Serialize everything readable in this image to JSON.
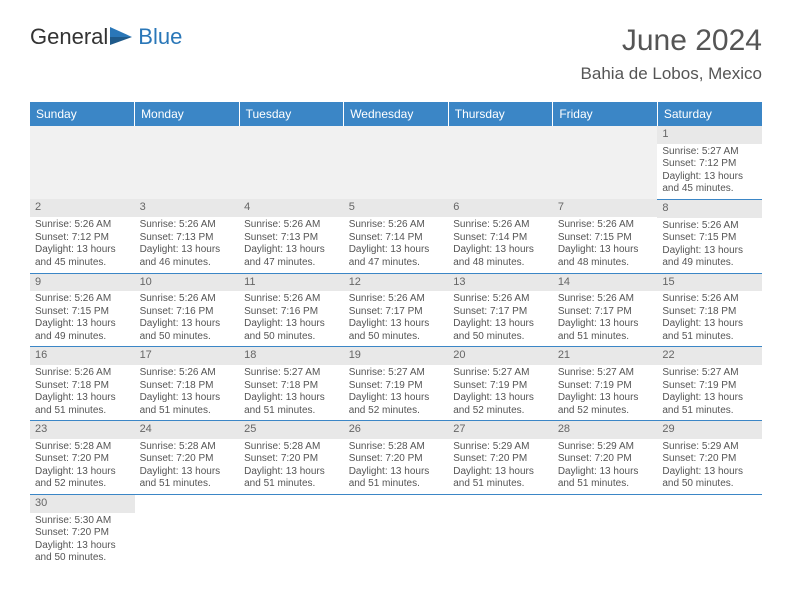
{
  "brand": {
    "part1": "General",
    "part2": "Blue"
  },
  "title": "June 2024",
  "location": "Bahia de Lobos, Mexico",
  "colors": {
    "header_bg": "#3b86c6",
    "header_text": "#ffffff",
    "daynum_bg": "#e8e8e8",
    "border": "#3b86c6",
    "text": "#555555",
    "logo_blue": "#2a77b8"
  },
  "day_headers": [
    "Sunday",
    "Monday",
    "Tuesday",
    "Wednesday",
    "Thursday",
    "Friday",
    "Saturday"
  ],
  "weeks": [
    [
      null,
      null,
      null,
      null,
      null,
      null,
      {
        "n": "1",
        "sunrise": "Sunrise: 5:27 AM",
        "sunset": "Sunset: 7:12 PM",
        "daylight": "Daylight: 13 hours and 45 minutes."
      }
    ],
    [
      {
        "n": "2",
        "sunrise": "Sunrise: 5:26 AM",
        "sunset": "Sunset: 7:12 PM",
        "daylight": "Daylight: 13 hours and 45 minutes."
      },
      {
        "n": "3",
        "sunrise": "Sunrise: 5:26 AM",
        "sunset": "Sunset: 7:13 PM",
        "daylight": "Daylight: 13 hours and 46 minutes."
      },
      {
        "n": "4",
        "sunrise": "Sunrise: 5:26 AM",
        "sunset": "Sunset: 7:13 PM",
        "daylight": "Daylight: 13 hours and 47 minutes."
      },
      {
        "n": "5",
        "sunrise": "Sunrise: 5:26 AM",
        "sunset": "Sunset: 7:14 PM",
        "daylight": "Daylight: 13 hours and 47 minutes."
      },
      {
        "n": "6",
        "sunrise": "Sunrise: 5:26 AM",
        "sunset": "Sunset: 7:14 PM",
        "daylight": "Daylight: 13 hours and 48 minutes."
      },
      {
        "n": "7",
        "sunrise": "Sunrise: 5:26 AM",
        "sunset": "Sunset: 7:15 PM",
        "daylight": "Daylight: 13 hours and 48 minutes."
      },
      {
        "n": "8",
        "sunrise": "Sunrise: 5:26 AM",
        "sunset": "Sunset: 7:15 PM",
        "daylight": "Daylight: 13 hours and 49 minutes."
      }
    ],
    [
      {
        "n": "9",
        "sunrise": "Sunrise: 5:26 AM",
        "sunset": "Sunset: 7:15 PM",
        "daylight": "Daylight: 13 hours and 49 minutes."
      },
      {
        "n": "10",
        "sunrise": "Sunrise: 5:26 AM",
        "sunset": "Sunset: 7:16 PM",
        "daylight": "Daylight: 13 hours and 50 minutes."
      },
      {
        "n": "11",
        "sunrise": "Sunrise: 5:26 AM",
        "sunset": "Sunset: 7:16 PM",
        "daylight": "Daylight: 13 hours and 50 minutes."
      },
      {
        "n": "12",
        "sunrise": "Sunrise: 5:26 AM",
        "sunset": "Sunset: 7:17 PM",
        "daylight": "Daylight: 13 hours and 50 minutes."
      },
      {
        "n": "13",
        "sunrise": "Sunrise: 5:26 AM",
        "sunset": "Sunset: 7:17 PM",
        "daylight": "Daylight: 13 hours and 50 minutes."
      },
      {
        "n": "14",
        "sunrise": "Sunrise: 5:26 AM",
        "sunset": "Sunset: 7:17 PM",
        "daylight": "Daylight: 13 hours and 51 minutes."
      },
      {
        "n": "15",
        "sunrise": "Sunrise: 5:26 AM",
        "sunset": "Sunset: 7:18 PM",
        "daylight": "Daylight: 13 hours and 51 minutes."
      }
    ],
    [
      {
        "n": "16",
        "sunrise": "Sunrise: 5:26 AM",
        "sunset": "Sunset: 7:18 PM",
        "daylight": "Daylight: 13 hours and 51 minutes."
      },
      {
        "n": "17",
        "sunrise": "Sunrise: 5:26 AM",
        "sunset": "Sunset: 7:18 PM",
        "daylight": "Daylight: 13 hours and 51 minutes."
      },
      {
        "n": "18",
        "sunrise": "Sunrise: 5:27 AM",
        "sunset": "Sunset: 7:18 PM",
        "daylight": "Daylight: 13 hours and 51 minutes."
      },
      {
        "n": "19",
        "sunrise": "Sunrise: 5:27 AM",
        "sunset": "Sunset: 7:19 PM",
        "daylight": "Daylight: 13 hours and 52 minutes."
      },
      {
        "n": "20",
        "sunrise": "Sunrise: 5:27 AM",
        "sunset": "Sunset: 7:19 PM",
        "daylight": "Daylight: 13 hours and 52 minutes."
      },
      {
        "n": "21",
        "sunrise": "Sunrise: 5:27 AM",
        "sunset": "Sunset: 7:19 PM",
        "daylight": "Daylight: 13 hours and 52 minutes."
      },
      {
        "n": "22",
        "sunrise": "Sunrise: 5:27 AM",
        "sunset": "Sunset: 7:19 PM",
        "daylight": "Daylight: 13 hours and 51 minutes."
      }
    ],
    [
      {
        "n": "23",
        "sunrise": "Sunrise: 5:28 AM",
        "sunset": "Sunset: 7:20 PM",
        "daylight": "Daylight: 13 hours and 52 minutes."
      },
      {
        "n": "24",
        "sunrise": "Sunrise: 5:28 AM",
        "sunset": "Sunset: 7:20 PM",
        "daylight": "Daylight: 13 hours and 51 minutes."
      },
      {
        "n": "25",
        "sunrise": "Sunrise: 5:28 AM",
        "sunset": "Sunset: 7:20 PM",
        "daylight": "Daylight: 13 hours and 51 minutes."
      },
      {
        "n": "26",
        "sunrise": "Sunrise: 5:28 AM",
        "sunset": "Sunset: 7:20 PM",
        "daylight": "Daylight: 13 hours and 51 minutes."
      },
      {
        "n": "27",
        "sunrise": "Sunrise: 5:29 AM",
        "sunset": "Sunset: 7:20 PM",
        "daylight": "Daylight: 13 hours and 51 minutes."
      },
      {
        "n": "28",
        "sunrise": "Sunrise: 5:29 AM",
        "sunset": "Sunset: 7:20 PM",
        "daylight": "Daylight: 13 hours and 51 minutes."
      },
      {
        "n": "29",
        "sunrise": "Sunrise: 5:29 AM",
        "sunset": "Sunset: 7:20 PM",
        "daylight": "Daylight: 13 hours and 50 minutes."
      }
    ],
    [
      {
        "n": "30",
        "sunrise": "Sunrise: 5:30 AM",
        "sunset": "Sunset: 7:20 PM",
        "daylight": "Daylight: 13 hours and 50 minutes."
      },
      null,
      null,
      null,
      null,
      null,
      null
    ]
  ]
}
